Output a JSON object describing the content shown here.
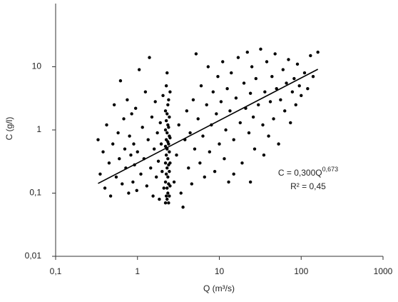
{
  "chart_data": {
    "type": "scatter",
    "x_label": "Q (m³/s)",
    "y_label": "C (g/l)",
    "xscale": "log",
    "yscale": "log",
    "color": "#000000",
    "xlim": [
      0.1,
      1000
    ],
    "ylim": [
      0.01,
      100
    ],
    "xticks": [
      {
        "value": 0.1,
        "label": "0,1"
      },
      1,
      10,
      100,
      1000
    ],
    "yticks": [
      {
        "value": 0.01,
        "label": "0,01"
      },
      {
        "value": 0.1,
        "label": "0,1"
      },
      1,
      10
    ],
    "x": [
      0.33,
      0.35,
      0.38,
      0.4,
      0.42,
      0.45,
      0.47,
      0.5,
      0.52,
      0.55,
      0.58,
      0.6,
      0.62,
      0.65,
      0.68,
      0.7,
      0.72,
      0.75,
      0.78,
      0.8,
      0.83,
      0.85,
      0.88,
      0.9,
      0.92,
      0.95,
      0.98,
      1,
      1.05,
      1.1,
      1.15,
      1.2,
      1.25,
      1.3,
      1.35,
      1.4,
      1.45,
      1.5,
      1.55,
      1.6,
      1.65,
      1.7,
      1.75,
      1.8,
      1.85,
      1.9,
      1.95,
      2,
      2.05,
      2.1,
      2.2,
      2.2,
      2.2,
      2.2,
      2.2,
      2.2,
      2.25,
      2.25,
      2.25,
      2.25,
      2.25,
      2.25,
      2.3,
      2.3,
      2.3,
      2.3,
      2.3,
      2.3,
      2.3,
      2.35,
      2.35,
      2.35,
      2.35,
      2.35,
      2.35,
      2.4,
      2.4,
      2.4,
      2.4,
      2.4,
      2.4,
      2.45,
      2.45,
      2.45,
      2.45,
      2.45,
      2.5,
      2.5,
      2.5,
      2.5,
      2.8,
      3,
      3.2,
      3.4,
      3.6,
      3.8,
      4,
      4.2,
      4.4,
      4.6,
      4.8,
      5,
      5.2,
      5.5,
      5.8,
      6,
      6.3,
      6.6,
      7,
      7.3,
      7.6,
      8,
      8.4,
      8.8,
      9.2,
      9.6,
      10,
      10.5,
      11,
      11.5,
      12,
      12.5,
      13,
      13.5,
      14,
      15,
      16,
      17,
      18,
      19,
      20,
      21,
      22,
      23,
      24,
      25,
      26,
      27,
      28,
      30,
      32,
      34,
      36,
      38,
      40,
      42,
      44,
      46,
      48,
      50,
      53,
      56,
      60,
      63,
      66,
      70,
      74,
      78,
      82,
      86,
      90,
      95,
      100,
      110,
      120,
      130,
      140,
      160,
      24,
      15,
      35
    ],
    "values": [
      0.7,
      0.2,
      0.45,
      0.12,
      1.2,
      0.3,
      0.09,
      0.6,
      2.5,
      0.18,
      0.9,
      0.35,
      6,
      0.14,
      1.5,
      0.5,
      0.25,
      3,
      0.1,
      0.8,
      0.4,
      1.8,
      0.15,
      0.6,
      0.28,
      2.2,
      0.11,
      0.45,
      9,
      0.2,
      1.1,
      0.35,
      4,
      0.13,
      0.7,
      14,
      0.25,
      1.6,
      0.09,
      0.5,
      2.8,
      0.18,
      0.9,
      0.32,
      0.08,
      1.3,
      0.6,
      0.22,
      3.5,
      0.12,
      0.07,
      0.15,
      0.3,
      0.55,
      1,
      2,
      0.09,
      0.2,
      0.4,
      0.7,
      1.4,
      5,
      0.08,
      0.12,
      0.25,
      0.5,
      0.9,
      1.8,
      8,
      0.1,
      0.18,
      0.35,
      0.65,
      1.2,
      2.5,
      0.07,
      0.14,
      0.28,
      0.6,
      1.1,
      3,
      0.09,
      0.22,
      0.45,
      0.8,
      1.6,
      0.13,
      0.3,
      0.75,
      4,
      0.15,
      0.4,
      1.2,
      0.1,
      0.06,
      0.7,
      2,
      0.25,
      0.9,
      0.14,
      3,
      0.5,
      16,
      1.5,
      0.3,
      5,
      0.8,
      0.18,
      2.5,
      10,
      0.45,
      1.2,
      4,
      0.22,
      1.8,
      7,
      0.6,
      2.8,
      12,
      0.35,
      1,
      4.5,
      0.15,
      2,
      8,
      0.7,
      3.2,
      14,
      1.3,
      0.3,
      5.5,
      2.2,
      17,
      0.9,
      3.8,
      10,
      1.6,
      0.5,
      6.5,
      2.5,
      19,
      1.2,
      4,
      12,
      0.8,
      2.8,
      7,
      1.5,
      16,
      4.5,
      0.6,
      3,
      9,
      2,
      5.5,
      13,
      1.3,
      4,
      6.5,
      2.5,
      11,
      5,
      3.5,
      8,
      4.5,
      15,
      7,
      17,
      0.15,
      0.2,
      0.4
    ],
    "trendline": {
      "a": 0.3,
      "b": 0.673,
      "x": [
        0.33,
        160
      ]
    },
    "annotation": {
      "equation": "C = 0,300Q",
      "exponent": "0,673",
      "r2": "R² = 0,45"
    }
  }
}
